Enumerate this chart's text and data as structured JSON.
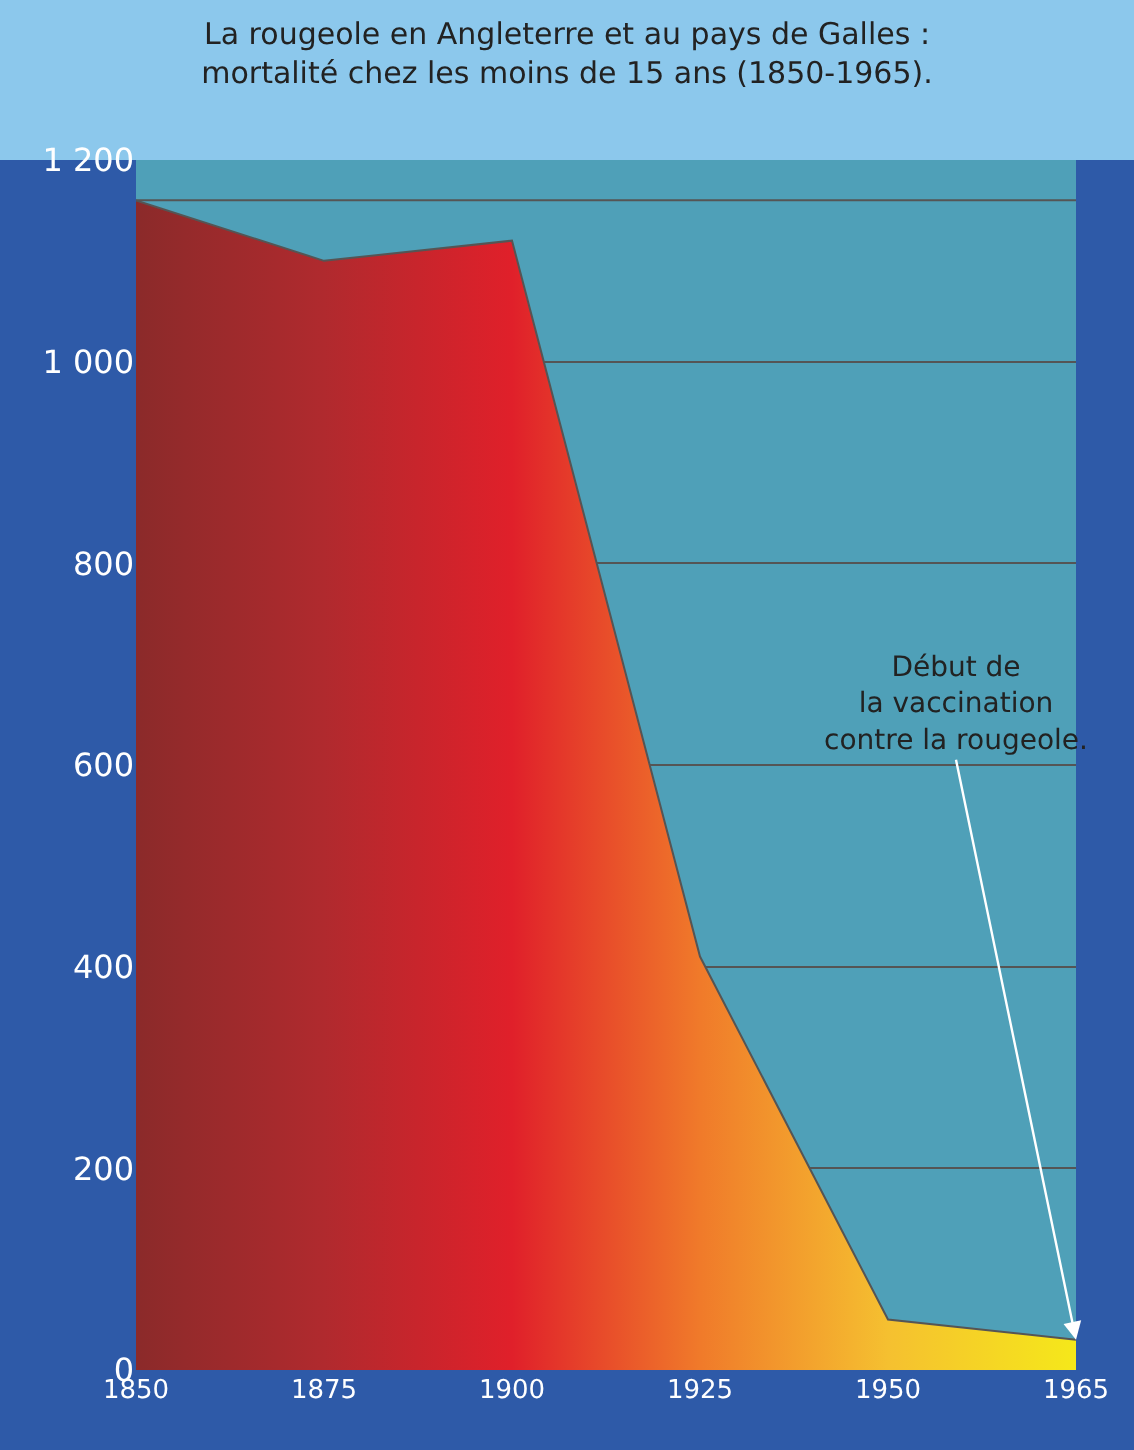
{
  "chart_data": {
    "type": "area",
    "title": "La rougeole en Angleterre et au pays de Galles :\nmortalité chez les moins de 15 ans (1850-1965).",
    "categories": [
      "1850",
      "1875",
      "1900",
      "1925",
      "1950",
      "1965"
    ],
    "series": [
      {
        "values": [
          1160,
          1100,
          1120,
          410,
          50,
          30
        ],
        "colors": [
          "#8b2a2a",
          "#b02a2e",
          "#e0202a",
          "#f07a2a",
          "#f5c030",
          "#f5e81a"
        ]
      }
    ],
    "ylim": [
      0,
      1200
    ],
    "yticks": [
      0,
      200,
      400,
      600,
      800,
      {
        "value": 1000,
        "label": "1 000"
      },
      {
        "value": 1200,
        "label": "1 200"
      }
    ],
    "grid": "y",
    "ref_lines": [
      {
        "axis": "y",
        "value": 1160,
        "color": "#555555"
      }
    ],
    "annotations": [
      {
        "text": "Début de\nla vaccination\ncontre la rougeole.",
        "x": "1965",
        "y": 30
      }
    ]
  }
}
